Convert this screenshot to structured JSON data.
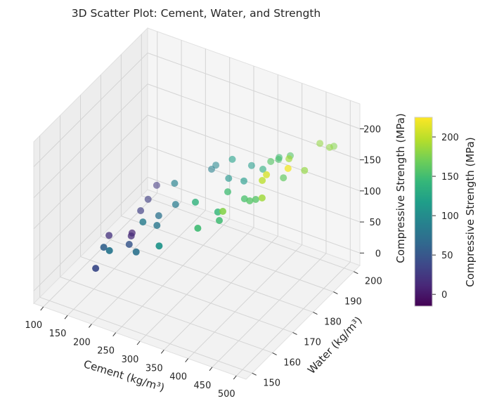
{
  "chart_data": {
    "type": "scatter",
    "projection": "3d",
    "title": "3D Scatter Plot: Cement, Water, and Strength",
    "xlabel": "Cement (kg/m³)",
    "ylabel": "Water (kg/m³)",
    "zlabel": "Compressive Strength (MPa)",
    "xlim": [
      80,
      520
    ],
    "ylim": [
      147,
      203
    ],
    "zlim": [
      -20,
      240
    ],
    "xticks": [
      100,
      150,
      200,
      250,
      300,
      350,
      400,
      450,
      500
    ],
    "yticks": [
      150,
      160,
      170,
      180,
      190,
      200
    ],
    "zticks": [
      0,
      50,
      100,
      150,
      200
    ],
    "grid": true,
    "colormap": "viridis",
    "colorbar": {
      "label": "Compressive Strength (MPa)",
      "range": [
        -15,
        225
      ],
      "ticks": [
        0,
        50,
        100,
        150,
        200
      ]
    },
    "points": [
      [
        178,
        154.2,
        40
      ],
      [
        177,
        158.4,
        60
      ],
      [
        210,
        153.4,
        80
      ],
      [
        129,
        172.4,
        20
      ],
      [
        202,
        165,
        50
      ],
      [
        151,
        178.5,
        10
      ],
      [
        159,
        176.2,
        15
      ],
      [
        248,
        157.5,
        75
      ],
      [
        222,
        167,
        85
      ],
      [
        149,
        183.2,
        30
      ],
      [
        143,
        188.3,
        30
      ],
      [
        130,
        195.6,
        25
      ],
      [
        244,
        168.7,
        80
      ],
      [
        227,
        173.6,
        75
      ],
      [
        307,
        154.8,
        110
      ],
      [
        216,
        184,
        90
      ],
      [
        245,
        177.6,
        85
      ],
      [
        377,
        157.2,
        150
      ],
      [
        324,
        168.6,
        140
      ],
      [
        251,
        193.9,
        90
      ],
      [
        256,
        194.8,
        95
      ],
      [
        398,
        162.8,
        150
      ],
      [
        378,
        166.8,
        145
      ],
      [
        418,
        159.8,
        180
      ],
      [
        367,
        174.3,
        150
      ],
      [
        310,
        188.3,
        110
      ],
      [
        296,
        193.4,
        120
      ],
      [
        342,
        188.2,
        115
      ],
      [
        408,
        172.8,
        155
      ],
      [
        424,
        171.6,
        160
      ],
      [
        330,
        194.8,
        115
      ],
      [
        431,
        172.9,
        160
      ],
      [
        467,
        167.5,
        190
      ],
      [
        450,
        171.6,
        200
      ],
      [
        372,
        190.4,
        135
      ],
      [
        457,
        172,
        210
      ],
      [
        396,
        188.6,
        160
      ],
      [
        400,
        191.5,
        155
      ],
      [
        393,
        193.4,
        150
      ],
      [
        445,
        183.2,
        165
      ],
      [
        490,
        174.8,
        220
      ],
      [
        448,
        185.2,
        190
      ],
      [
        417,
        193.2,
        160
      ],
      [
        485,
        184.1,
        185
      ],
      [
        467,
        195.9,
        185
      ],
      [
        488,
        195.7,
        185
      ],
      [
        488,
        197.8,
        180
      ]
    ]
  }
}
